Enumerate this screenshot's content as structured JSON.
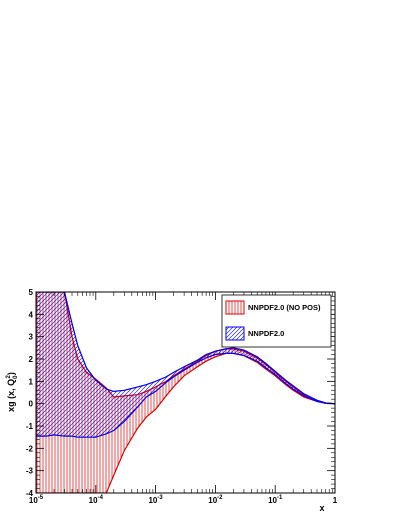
{
  "chart_data": {
    "type": "area",
    "title": "",
    "xlabel": "x",
    "ylabel": "xg (x, Q",
    "ylabel_sub": "0",
    "ylabel_sup": "2",
    "ylabel_tail": ")",
    "xscale": "log",
    "xlim": [
      1e-05,
      1
    ],
    "ylim": [
      -4,
      5
    ],
    "y_ticks": [
      "-4",
      "-3",
      "-2",
      "-1",
      "0",
      "1",
      "2",
      "3",
      "4",
      "5"
    ],
    "x_ticks": [
      {
        "base": "10",
        "exp": "-5",
        "value": 1e-05
      },
      {
        "base": "10",
        "exp": "-4",
        "value": 0.0001
      },
      {
        "base": "10",
        "exp": "-3",
        "value": 0.001
      },
      {
        "base": "10",
        "exp": "-2",
        "value": 0.01
      },
      {
        "base": "10",
        "exp": "-1",
        "value": 0.1
      },
      {
        "base": "1",
        "exp": "",
        "value": 1
      }
    ],
    "grid": false,
    "legend_position": "top-right",
    "series": [
      {
        "name": "NNPDF2.0 (NO POS)",
        "color": "#e00000",
        "hatch": "vertical",
        "x": [
          1e-05,
          1.5e-05,
          2e-05,
          3e-05,
          4e-05,
          5e-05,
          7e-05,
          0.0001,
          0.00015,
          0.0002,
          0.0003,
          0.0005,
          0.0007,
          0.001,
          0.0015,
          0.002,
          0.003,
          0.005,
          0.007,
          0.01,
          0.015,
          0.02,
          0.03,
          0.05,
          0.07,
          0.1,
          0.15,
          0.2,
          0.3,
          0.5,
          0.7,
          1
        ],
        "upper": [
          5,
          5,
          5,
          5,
          3.0,
          2.0,
          1.4,
          1.1,
          0.7,
          0.3,
          0.35,
          0.4,
          0.55,
          0.75,
          1.0,
          1.25,
          1.55,
          1.9,
          2.15,
          2.35,
          2.45,
          2.45,
          2.35,
          2.05,
          1.75,
          1.4,
          1.0,
          0.75,
          0.4,
          0.15,
          0.03,
          0.0
        ],
        "lower": [
          -4,
          -4,
          -4,
          -4,
          -4,
          -4,
          -4,
          -4,
          -4,
          -3.2,
          -2.1,
          -1.1,
          -0.6,
          -0.25,
          0.35,
          0.75,
          1.25,
          1.65,
          1.9,
          2.1,
          2.25,
          2.25,
          2.15,
          1.85,
          1.55,
          1.25,
          0.85,
          0.6,
          0.3,
          0.1,
          0.01,
          0.0
        ]
      },
      {
        "name": "NNPDF2.0",
        "color": "#0000ee",
        "hatch": "diagonal",
        "x": [
          1e-05,
          1.5e-05,
          2e-05,
          3e-05,
          4e-05,
          5e-05,
          7e-05,
          0.0001,
          0.00015,
          0.0002,
          0.0003,
          0.0005,
          0.0007,
          0.001,
          0.0015,
          0.002,
          0.003,
          0.005,
          0.007,
          0.01,
          0.015,
          0.02,
          0.03,
          0.05,
          0.07,
          0.1,
          0.15,
          0.2,
          0.3,
          0.5,
          0.7,
          1
        ],
        "upper": [
          5,
          5,
          5,
          5,
          3.6,
          2.6,
          1.6,
          1.05,
          0.65,
          0.55,
          0.6,
          0.75,
          0.85,
          1.0,
          1.2,
          1.4,
          1.65,
          1.95,
          2.2,
          2.35,
          2.45,
          2.5,
          2.4,
          2.1,
          1.8,
          1.45,
          1.05,
          0.8,
          0.45,
          0.15,
          0.03,
          0.0
        ],
        "lower": [
          -1.45,
          -1.45,
          -1.4,
          -1.45,
          -1.45,
          -1.5,
          -1.5,
          -1.5,
          -1.35,
          -1.2,
          -0.8,
          -0.15,
          0.3,
          0.55,
          0.95,
          1.2,
          1.5,
          1.85,
          2.05,
          2.2,
          2.25,
          2.25,
          2.15,
          1.9,
          1.6,
          1.3,
          0.9,
          0.65,
          0.35,
          0.1,
          0.02,
          0.0
        ]
      }
    ]
  }
}
